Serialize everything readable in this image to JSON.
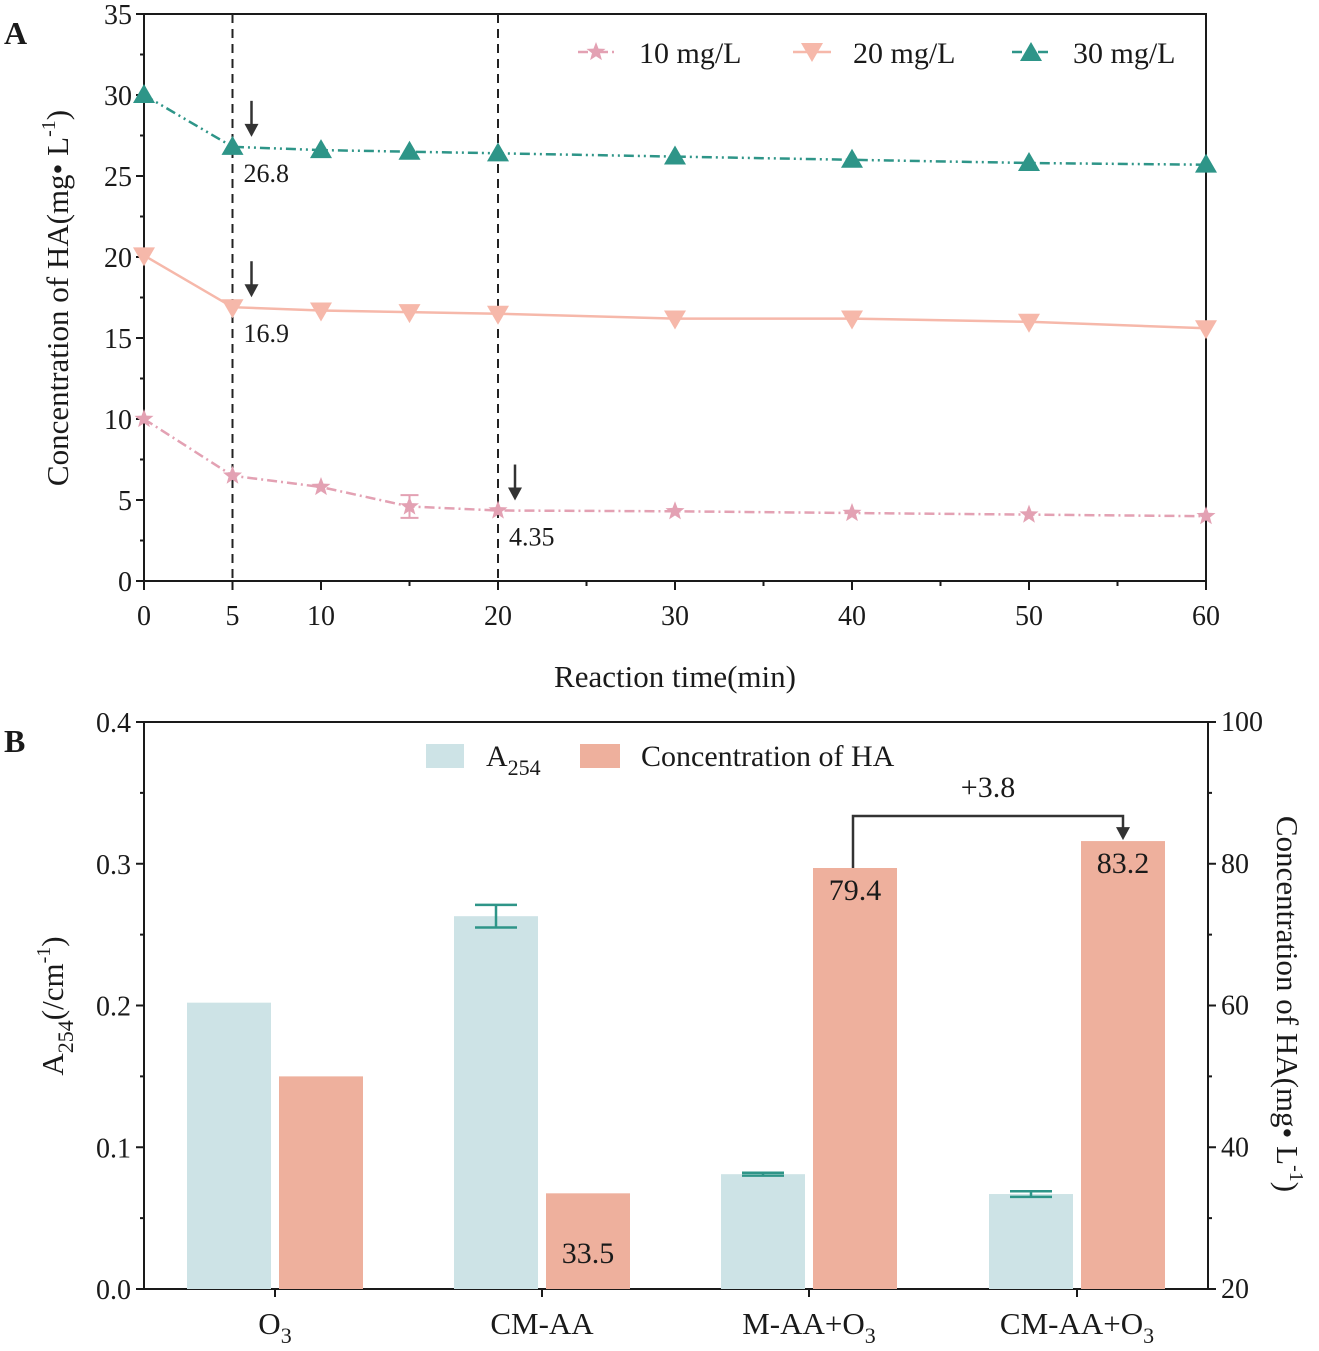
{
  "colors": {
    "s10": "#e3a1b3",
    "s20": "#f6b8aa",
    "s30": "#2e9588",
    "a254": "#cde3e6",
    "ha": "#eeb09d",
    "axis": "#1a1a1a",
    "arrow": "#333333"
  },
  "chart_data": [
    {
      "type": "line",
      "panel_label": "A",
      "xlabel": "Reaction time(min)",
      "ylabel_main": "Concentration of HA(mg",
      "ylabel_dot": "•",
      "ylabel_unit": " L",
      "ylabel_sup": "-1",
      "ylabel_close": ")",
      "xlim": [
        0,
        60
      ],
      "ylim": [
        0,
        35
      ],
      "x_ticks": [
        "0",
        "5",
        "10",
        "20",
        "30",
        "40",
        "50",
        "60"
      ],
      "y_ticks": [
        "0",
        "5",
        "10",
        "15",
        "20",
        "25",
        "30",
        "35"
      ],
      "vlines": [
        5,
        20
      ],
      "series": [
        {
          "name": "10 mg/L",
          "marker": "star",
          "dash": "dashdot",
          "x": [
            0,
            5,
            10,
            15,
            20,
            30,
            40,
            50,
            60
          ],
          "y": [
            10.0,
            6.5,
            5.8,
            4.6,
            4.35,
            4.3,
            4.2,
            4.1,
            4.0
          ],
          "errors": [
            0,
            0,
            0,
            0.7,
            0,
            0,
            0,
            0,
            0
          ]
        },
        {
          "name": "20 mg/L",
          "marker": "triangle-down",
          "dash": "solid",
          "x": [
            0,
            5,
            10,
            15,
            20,
            30,
            40,
            50,
            60
          ],
          "y": [
            20.1,
            16.9,
            16.7,
            16.6,
            16.5,
            16.2,
            16.2,
            16.0,
            15.6
          ],
          "errors": [
            0,
            0,
            0,
            0,
            0,
            0,
            0,
            0,
            0
          ]
        },
        {
          "name": "30 mg/L",
          "marker": "triangle-up",
          "dash": "dashdotdot",
          "x": [
            0,
            5,
            10,
            15,
            20,
            30,
            40,
            50,
            60
          ],
          "y": [
            30.0,
            26.8,
            26.6,
            26.5,
            26.4,
            26.2,
            26.0,
            25.8,
            25.7
          ],
          "errors": [
            0,
            0,
            0,
            0,
            0,
            0,
            0,
            0,
            0
          ]
        }
      ],
      "annotations": [
        {
          "text": "26.8",
          "x": 5,
          "y": 26.8
        },
        {
          "text": "16.9",
          "x": 5,
          "y": 16.9
        },
        {
          "text": "4.35",
          "x": 20,
          "y": 4.35
        }
      ]
    },
    {
      "type": "bar",
      "panel_label": "B",
      "categories": [
        "O",
        "CM-AA",
        "M-AA+O",
        "CM-AA+O"
      ],
      "category_subs": [
        "3",
        "",
        "3",
        "3"
      ],
      "left_ylabel_main": "A",
      "left_ylabel_sub": "254",
      "left_ylabel_rest": "(/cm",
      "left_ylabel_sup": "-1",
      "left_ylabel_close": ")",
      "right_ylabel_main": "Concentration of HA(mg",
      "right_ylabel_dot": "•",
      "right_ylabel_unit": " L",
      "right_ylabel_sup": "-1",
      "right_ylabel_close": ")",
      "left_ylim": [
        0.0,
        0.4
      ],
      "right_ylim": [
        20,
        100
      ],
      "left_ticks": [
        "0.0",
        "0.1",
        "0.2",
        "0.3",
        "0.4"
      ],
      "right_ticks": [
        "20",
        "40",
        "60",
        "80",
        "100"
      ],
      "legend": {
        "a254_main": "A",
        "a254_sub": "254",
        "ha": "Concentration of HA"
      },
      "series": [
        {
          "name": "A254",
          "axis": "left",
          "values": [
            0.202,
            0.263,
            0.081,
            0.067
          ],
          "errors": [
            0,
            0.008,
            0.001,
            0.002
          ]
        },
        {
          "name": "Concentration of HA",
          "axis": "right",
          "values": [
            50.0,
            33.5,
            79.4,
            83.2
          ],
          "errors": [
            0,
            0,
            0,
            0
          ]
        }
      ],
      "bar_labels": [
        "",
        "33.5",
        "79.4",
        "83.2"
      ],
      "bracket_label": "+3.8"
    }
  ]
}
